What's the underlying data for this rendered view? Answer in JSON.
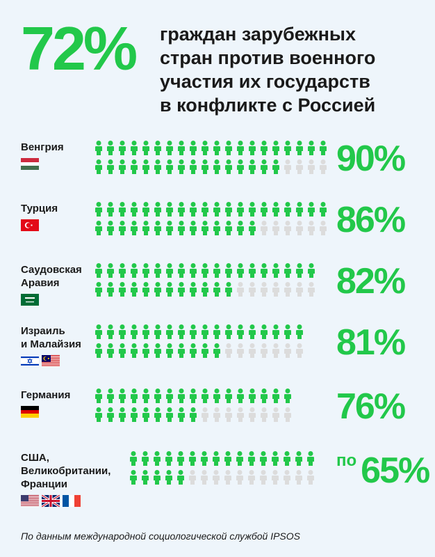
{
  "headline": {
    "big_value": "72%",
    "line1": "граждан зарубежных",
    "line2": "стран против военного",
    "line3": "участия их государств",
    "line4": "в конфликте с Россией"
  },
  "footnote": "По данным международной социологической службой IPSOS",
  "colors": {
    "accent": "#22c84a",
    "inactive": "#dcdcdc",
    "text": "#1a1a1a",
    "background": "#eef5fb"
  },
  "chart_data": {
    "type": "pictogram",
    "icon": "person-icon",
    "rows": [
      {
        "lines": [
          "Венгрия"
        ],
        "flags": [
          "hungary-flag-icon"
        ],
        "value": 90,
        "label": "90%",
        "prefix": "",
        "icons_per_row": 20,
        "rows_of_icons": 2,
        "active": 36
      },
      {
        "lines": [
          "Турция"
        ],
        "flags": [
          "turkey-flag-icon"
        ],
        "value": 86,
        "label": "86%",
        "prefix": "",
        "icons_per_row": 20,
        "rows_of_icons": 2,
        "active": 34
      },
      {
        "lines": [
          "Саудовская",
          "Аравия"
        ],
        "flags": [
          "saudi-arabia-flag-icon"
        ],
        "value": 82,
        "label": "82%",
        "prefix": "",
        "icons_per_row": 19,
        "rows_of_icons": 2,
        "active": 31
      },
      {
        "lines": [
          "Израиль",
          "и Малайзия"
        ],
        "flags": [
          "israel-flag-icon",
          "malaysia-flag-icon"
        ],
        "value": 81,
        "label": "81%",
        "prefix": "",
        "icons_per_row": 18,
        "rows_of_icons": 2,
        "active": 29
      },
      {
        "lines": [
          "Германия"
        ],
        "flags": [
          "germany-flag-icon"
        ],
        "value": 76,
        "label": "76%",
        "prefix": "",
        "icons_per_row": 17,
        "rows_of_icons": 2,
        "active": 26
      },
      {
        "lines": [
          "США,",
          "Великобритании,",
          "Франции"
        ],
        "flags": [
          "usa-flag-icon",
          "uk-flag-icon",
          "france-flag-icon"
        ],
        "value": 65,
        "label": "65%",
        "prefix": "по",
        "icons_per_row": 16,
        "rows_of_icons": 2,
        "active": 21
      }
    ]
  }
}
